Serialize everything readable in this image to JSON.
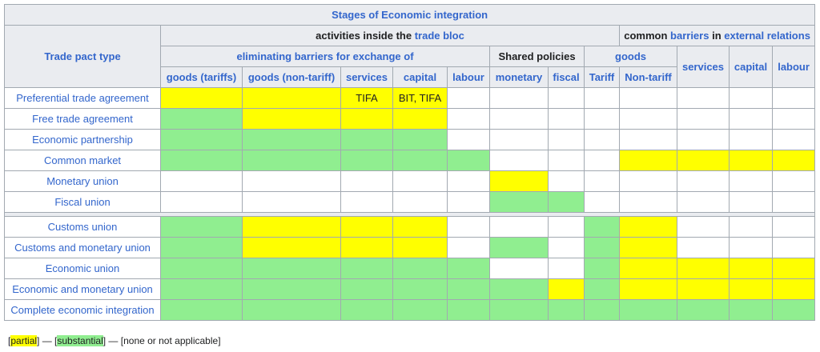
{
  "title": "Stages of Economic integration",
  "headers": {
    "trade_pact_type": "Trade pact type",
    "activities_prefix": "activities inside the",
    "activities_link": "trade bloc",
    "common_prefix": "common",
    "common_link1": "barriers",
    "common_mid": "in",
    "common_link2": "external relations",
    "eliminating": "eliminating barriers for exchange of",
    "shared_policies": "Shared policies",
    "goods": "goods",
    "services": "services",
    "capital": "capital",
    "labour": "labour",
    "goods_tariffs": "goods (tariffs)",
    "goods_nontariff": "goods (non-tariff)",
    "services_sub": "services",
    "capital_sub": "capital",
    "labour_sub": "labour",
    "monetary": "monetary",
    "fiscal": "fiscal",
    "tariff": "Tariff",
    "nontariff": "Non-tariff"
  },
  "status_colors": {
    "partial": "#ffff00",
    "substantial": "#90ee90",
    "none": "#ffffff"
  },
  "rows_group1": [
    {
      "name": "Preferential trade agreement",
      "cells": [
        [
          "y",
          ""
        ],
        [
          "y",
          ""
        ],
        [
          "y",
          "TIFA"
        ],
        [
          "y",
          "BIT, TIFA"
        ],
        [
          "w",
          ""
        ],
        [
          "w",
          ""
        ],
        [
          "w",
          ""
        ],
        [
          "w",
          ""
        ],
        [
          "w",
          ""
        ],
        [
          "w",
          ""
        ],
        [
          "w",
          ""
        ],
        [
          "w",
          ""
        ]
      ]
    },
    {
      "name": "Free trade agreement",
      "cells": [
        [
          "g",
          ""
        ],
        [
          "y",
          ""
        ],
        [
          "y",
          ""
        ],
        [
          "y",
          ""
        ],
        [
          "w",
          ""
        ],
        [
          "w",
          ""
        ],
        [
          "w",
          ""
        ],
        [
          "w",
          ""
        ],
        [
          "w",
          ""
        ],
        [
          "w",
          ""
        ],
        [
          "w",
          ""
        ],
        [
          "w",
          ""
        ]
      ]
    },
    {
      "name": "Economic partnership",
      "cells": [
        [
          "g",
          ""
        ],
        [
          "g",
          ""
        ],
        [
          "g",
          ""
        ],
        [
          "g",
          ""
        ],
        [
          "w",
          ""
        ],
        [
          "w",
          ""
        ],
        [
          "w",
          ""
        ],
        [
          "w",
          ""
        ],
        [
          "w",
          ""
        ],
        [
          "w",
          ""
        ],
        [
          "w",
          ""
        ],
        [
          "w",
          ""
        ]
      ]
    },
    {
      "name": "Common market",
      "cells": [
        [
          "g",
          ""
        ],
        [
          "g",
          ""
        ],
        [
          "g",
          ""
        ],
        [
          "g",
          ""
        ],
        [
          "g",
          ""
        ],
        [
          "w",
          ""
        ],
        [
          "w",
          ""
        ],
        [
          "w",
          ""
        ],
        [
          "y",
          ""
        ],
        [
          "y",
          ""
        ],
        [
          "y",
          ""
        ],
        [
          "y",
          ""
        ]
      ]
    },
    {
      "name": "Monetary union",
      "cells": [
        [
          "w",
          ""
        ],
        [
          "w",
          ""
        ],
        [
          "w",
          ""
        ],
        [
          "w",
          ""
        ],
        [
          "w",
          ""
        ],
        [
          "y",
          ""
        ],
        [
          "w",
          ""
        ],
        [
          "w",
          ""
        ],
        [
          "w",
          ""
        ],
        [
          "w",
          ""
        ],
        [
          "w",
          ""
        ],
        [
          "w",
          ""
        ]
      ]
    },
    {
      "name": "Fiscal union",
      "cells": [
        [
          "w",
          ""
        ],
        [
          "w",
          ""
        ],
        [
          "w",
          ""
        ],
        [
          "w",
          ""
        ],
        [
          "w",
          ""
        ],
        [
          "g",
          ""
        ],
        [
          "g",
          ""
        ],
        [
          "w",
          ""
        ],
        [
          "w",
          ""
        ],
        [
          "w",
          ""
        ],
        [
          "w",
          ""
        ],
        [
          "w",
          ""
        ]
      ]
    }
  ],
  "rows_group2": [
    {
      "name": "Customs union",
      "cells": [
        [
          "g",
          ""
        ],
        [
          "y",
          ""
        ],
        [
          "y",
          ""
        ],
        [
          "y",
          ""
        ],
        [
          "w",
          ""
        ],
        [
          "w",
          ""
        ],
        [
          "w",
          ""
        ],
        [
          "g",
          ""
        ],
        [
          "y",
          ""
        ],
        [
          "w",
          ""
        ],
        [
          "w",
          ""
        ],
        [
          "w",
          ""
        ]
      ]
    },
    {
      "name": "Customs and monetary union",
      "cells": [
        [
          "g",
          ""
        ],
        [
          "y",
          ""
        ],
        [
          "y",
          ""
        ],
        [
          "y",
          ""
        ],
        [
          "w",
          ""
        ],
        [
          "g",
          ""
        ],
        [
          "w",
          ""
        ],
        [
          "g",
          ""
        ],
        [
          "y",
          ""
        ],
        [
          "w",
          ""
        ],
        [
          "w",
          ""
        ],
        [
          "w",
          ""
        ]
      ]
    },
    {
      "name": "Economic union",
      "cells": [
        [
          "g",
          ""
        ],
        [
          "g",
          ""
        ],
        [
          "g",
          ""
        ],
        [
          "g",
          ""
        ],
        [
          "g",
          ""
        ],
        [
          "w",
          ""
        ],
        [
          "w",
          ""
        ],
        [
          "g",
          ""
        ],
        [
          "y",
          ""
        ],
        [
          "y",
          ""
        ],
        [
          "y",
          ""
        ],
        [
          "y",
          ""
        ]
      ]
    },
    {
      "name": "Economic and monetary union",
      "cells": [
        [
          "g",
          ""
        ],
        [
          "g",
          ""
        ],
        [
          "g",
          ""
        ],
        [
          "g",
          ""
        ],
        [
          "g",
          ""
        ],
        [
          "g",
          ""
        ],
        [
          "y",
          ""
        ],
        [
          "g",
          ""
        ],
        [
          "y",
          ""
        ],
        [
          "y",
          ""
        ],
        [
          "y",
          ""
        ],
        [
          "y",
          ""
        ]
      ]
    },
    {
      "name": "Complete economic integration",
      "cells": [
        [
          "g",
          ""
        ],
        [
          "g",
          ""
        ],
        [
          "g",
          ""
        ],
        [
          "g",
          ""
        ],
        [
          "g",
          ""
        ],
        [
          "g",
          ""
        ],
        [
          "g",
          ""
        ],
        [
          "g",
          ""
        ],
        [
          "g",
          ""
        ],
        [
          "g",
          ""
        ],
        [
          "g",
          ""
        ],
        [
          "g",
          ""
        ]
      ]
    }
  ],
  "legend": {
    "partial": "partial",
    "substantial": "substantial",
    "dash": "—",
    "none": "[none or not applicable]"
  }
}
